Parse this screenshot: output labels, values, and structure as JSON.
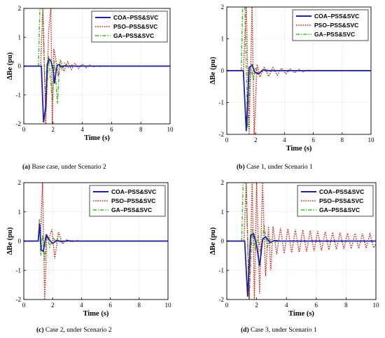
{
  "figure": {
    "colors": {
      "coa": "#1f1fa8",
      "pso": "#c8261c",
      "ga": "#3db52a",
      "highlight": "#f3b4d2"
    }
  },
  "chart_data": [
    {
      "type": "line",
      "panel_letter": "(a)",
      "caption": "Base case, under Scenario 2",
      "xlabel": "Time (s)",
      "ylabel": "ΔBe (pu)",
      "xlim": [
        0,
        10
      ],
      "ylim": [
        -2,
        2
      ],
      "xticks": [
        "0",
        "2",
        "4",
        "6",
        "8",
        "10"
      ],
      "yticks": [
        "-2",
        "-1",
        "0",
        "1",
        "2"
      ],
      "grid": true,
      "legend_position": "top-right",
      "series": [
        {
          "name": "COA–PSS&SVC",
          "key": "coa",
          "dash": "solid",
          "x": [
            0,
            1.0,
            1.2,
            1.35,
            1.5,
            1.6,
            1.72,
            1.85,
            2.0,
            2.1,
            2.2,
            2.3,
            2.4,
            2.6,
            2.8,
            3.0,
            3.5,
            4,
            5,
            6,
            7,
            8,
            9,
            10
          ],
          "y": [
            0,
            0,
            0,
            -1.95,
            -1.4,
            0.05,
            0.25,
            0.18,
            -0.1,
            -0.6,
            -0.2,
            0.04,
            0.05,
            -0.02,
            0.01,
            0,
            0,
            0,
            0,
            0,
            0,
            0,
            0,
            0
          ]
        },
        {
          "name": "PSO–PSS&SVC",
          "key": "pso",
          "dash": "dotted",
          "x": [
            0,
            1.0,
            1.15,
            1.3,
            1.5,
            1.7,
            1.85,
            1.95,
            2.05,
            2.2,
            2.35,
            2.5,
            2.75,
            3.0,
            3.25,
            3.5,
            3.75,
            4.0,
            4.25,
            4.5,
            4.75,
            5.0,
            5.25,
            5.5,
            6,
            6.5,
            7,
            8,
            9,
            10
          ],
          "y": [
            0,
            0,
            0,
            2.0,
            -2.0,
            1.2,
            2.0,
            -2.0,
            0.6,
            0.2,
            -0.35,
            0.22,
            -0.18,
            0.15,
            -0.12,
            0.1,
            -0.08,
            0.07,
            -0.05,
            0.04,
            -0.03,
            0.02,
            -0.015,
            0.01,
            0.005,
            0,
            0,
            0,
            0,
            0
          ]
        },
        {
          "name": "GA–PSS&SVC",
          "key": "ga",
          "dash": "dashdot",
          "x": [
            0,
            1.0,
            1.1,
            1.3,
            1.5,
            1.7,
            1.95,
            2.1,
            2.3,
            2.45,
            2.6,
            2.8,
            3.0,
            3.3,
            3.6,
            4.0,
            5,
            6,
            7,
            8,
            9,
            10
          ],
          "y": [
            0,
            0,
            2.0,
            2.0,
            -1.6,
            0.35,
            -1.2,
            0.2,
            -1.3,
            0.1,
            -0.15,
            0.12,
            -0.06,
            0.04,
            -0.02,
            0.01,
            0,
            0,
            0,
            0,
            0,
            0
          ]
        }
      ]
    },
    {
      "type": "line",
      "panel_letter": "(b)",
      "caption": "Case 1, under Scenario 1",
      "xlabel": "Time (s)",
      "ylabel": "ΔBe (pu)",
      "xlim": [
        0,
        10
      ],
      "ylim": [
        -2,
        2
      ],
      "xticks": [
        "0",
        "2",
        "4",
        "6",
        "8",
        "10"
      ],
      "yticks": [
        "-2",
        "-1",
        "0",
        "1",
        "2"
      ],
      "grid": true,
      "legend_position": "top-right",
      "series": [
        {
          "name": "COA–PSS&SVC",
          "key": "coa",
          "dash": "solid",
          "x": [
            0,
            1.0,
            1.15,
            1.35,
            1.55,
            1.75,
            1.95,
            2.2,
            2.5,
            3.0,
            3.5,
            4,
            5,
            6,
            7,
            8,
            9,
            10
          ],
          "y": [
            0,
            0,
            0,
            -1.9,
            0.1,
            0.18,
            -0.05,
            -0.1,
            0.02,
            0,
            0,
            0,
            0,
            0,
            0,
            0,
            0,
            0
          ]
        },
        {
          "name": "PSO–PSS&SVC",
          "key": "pso",
          "dash": "dotted",
          "x": [
            0,
            1.0,
            1.15,
            1.35,
            1.55,
            1.75,
            1.9,
            2.1,
            2.3,
            2.6,
            2.9,
            3.2,
            3.5,
            3.8,
            4.1,
            4.4,
            4.7,
            5.0,
            5.3,
            5.6,
            6,
            7,
            8,
            9,
            10
          ],
          "y": [
            0,
            0,
            0,
            2.0,
            -2.0,
            2.0,
            -2.0,
            0.2,
            -0.2,
            0.1,
            -0.18,
            0.1,
            -0.14,
            0.08,
            -0.1,
            0.06,
            -0.07,
            0.04,
            -0.04,
            0.02,
            0,
            0,
            0,
            0,
            0
          ]
        },
        {
          "name": "GA–PSS&SVC",
          "key": "ga",
          "dash": "dashdot",
          "x": [
            0,
            1.0,
            1.1,
            1.25,
            1.45,
            1.65,
            1.85,
            2.0,
            2.2,
            2.5,
            2.8,
            3.2,
            3.6,
            4,
            5,
            6,
            7,
            8,
            9,
            10
          ],
          "y": [
            0,
            0,
            2.0,
            2.0,
            -1.8,
            0.15,
            -0.3,
            0.1,
            -0.12,
            0.05,
            -0.04,
            0.02,
            0,
            0,
            0,
            0,
            0,
            0,
            0,
            0
          ]
        }
      ]
    },
    {
      "type": "line",
      "panel_letter": "(c)",
      "caption": "Case 2, under Scenario 2",
      "xlabel": "Time (s)",
      "ylabel": "ΔBe (pu)",
      "xlim": [
        0,
        10
      ],
      "ylim": [
        -2,
        2
      ],
      "xticks": [
        "0",
        "2",
        "4",
        "6",
        "8",
        "10"
      ],
      "yticks": [
        "-2",
        "-1",
        "0",
        "1",
        "2"
      ],
      "grid": true,
      "legend_position": "top-right",
      "series": [
        {
          "name": "COA–PSS&SVC",
          "key": "coa",
          "dash": "solid",
          "x": [
            0,
            1.0,
            1.1,
            1.2,
            1.35,
            1.55,
            1.75,
            2.0,
            2.3,
            2.6,
            3.0,
            3.5,
            4,
            5,
            6,
            7,
            8,
            9,
            10
          ],
          "y": [
            0,
            0,
            0.6,
            -0.3,
            -0.35,
            0.2,
            0.05,
            -0.08,
            0.03,
            -0.02,
            0.01,
            0,
            0,
            0,
            0,
            0,
            0,
            0,
            0
          ]
        },
        {
          "name": "PSO–PSS&SVC",
          "key": "pso",
          "dash": "dotted",
          "x": [
            0,
            1.0,
            1.15,
            1.3,
            1.45,
            1.6,
            1.75,
            1.95,
            2.15,
            2.4,
            2.7,
            3.0,
            3.3,
            3.7,
            4.0,
            4.5,
            5,
            6,
            7,
            8,
            9,
            10
          ],
          "y": [
            0,
            0,
            0,
            2.0,
            -2.0,
            0.2,
            0.1,
            0.4,
            -0.6,
            0.3,
            -0.1,
            0.05,
            -0.03,
            0.02,
            0,
            0,
            0,
            0,
            0,
            0,
            0,
            0
          ]
        },
        {
          "name": "GA–PSS&SVC",
          "key": "ga",
          "dash": "dashdot",
          "x": [
            0,
            1.0,
            1.08,
            1.18,
            1.3,
            1.45,
            1.6,
            1.8,
            2.05,
            2.3,
            2.6,
            3.0,
            3.5,
            4,
            5,
            6,
            7,
            8,
            9,
            10
          ],
          "y": [
            0,
            0,
            0.75,
            -0.5,
            0.2,
            -0.65,
            0.25,
            -0.2,
            0.1,
            -0.05,
            0.03,
            -0.01,
            0,
            0,
            0,
            0,
            0,
            0,
            0,
            0
          ]
        }
      ]
    },
    {
      "type": "line",
      "panel_letter": "(d)",
      "caption": "Case 3, under Scenario 1",
      "xlabel": "Time (s)",
      "ylabel": "ΔBe (pu)",
      "xlim": [
        0,
        10
      ],
      "ylim": [
        -2,
        2
      ],
      "xticks": [
        "0",
        "2",
        "4",
        "6",
        "8",
        "10"
      ],
      "yticks": [
        "-2",
        "-1",
        "0",
        "1",
        "2"
      ],
      "grid": true,
      "legend_position": "top-right",
      "series": [
        {
          "name": "COA–PSS&SVC",
          "key": "coa",
          "dash": "solid",
          "x": [
            0,
            1.0,
            1.2,
            1.4,
            1.6,
            1.8,
            2.0,
            2.2,
            2.4,
            2.6,
            2.9,
            3.2,
            3.6,
            4,
            5,
            6,
            7,
            8,
            9,
            10
          ],
          "y": [
            0,
            0,
            0,
            -1.9,
            0.2,
            0.25,
            -0.15,
            -0.85,
            0.05,
            0.15,
            -0.05,
            0.02,
            0,
            0,
            0,
            0,
            0,
            0,
            0,
            0
          ]
        },
        {
          "name": "PSO–PSS&SVC",
          "key": "pso",
          "dash": "dotted",
          "x": [
            0,
            1.0,
            1.15,
            1.3,
            1.5,
            1.7,
            1.85,
            2.0,
            2.2,
            2.4,
            2.6,
            2.8,
            2.95,
            3.1,
            3.35,
            3.6,
            3.85,
            4.1,
            4.35,
            4.6,
            4.85,
            5.1,
            5.35,
            5.6,
            5.85,
            6.1,
            6.35,
            6.6,
            6.85,
            7.1,
            7.35,
            7.6,
            7.85,
            8.1,
            8.35,
            8.6,
            8.85,
            9.1,
            9.35,
            9.6,
            9.85,
            10
          ],
          "y": [
            0,
            0,
            0,
            2.0,
            -2.0,
            2.0,
            -2.0,
            2.0,
            -1.8,
            2.0,
            -1.2,
            0.5,
            -1.0,
            0.5,
            -0.45,
            0.45,
            -0.42,
            0.42,
            -0.4,
            0.4,
            -0.38,
            0.38,
            -0.36,
            0.36,
            -0.34,
            0.34,
            -0.32,
            0.32,
            -0.3,
            0.3,
            -0.28,
            0.28,
            -0.27,
            0.27,
            -0.26,
            0.26,
            -0.25,
            0.25,
            -0.24,
            0.24,
            -0.23,
            -0.1
          ]
        },
        {
          "name": "GA–PSS&SVC",
          "key": "ga",
          "dash": "dashdot",
          "x": [
            0,
            1.0,
            1.1,
            1.3,
            1.5,
            1.7,
            1.9,
            2.1,
            2.3,
            2.5,
            2.7,
            2.9,
            3.2,
            3.6,
            4,
            5,
            6,
            7,
            8,
            9,
            10
          ],
          "y": [
            0,
            0,
            2.0,
            2.0,
            -2.0,
            0.4,
            -0.3,
            0.2,
            -0.5,
            0.55,
            -0.2,
            0.05,
            -0.02,
            0,
            0,
            0,
            0,
            0,
            0,
            0,
            0
          ]
        }
      ]
    }
  ]
}
